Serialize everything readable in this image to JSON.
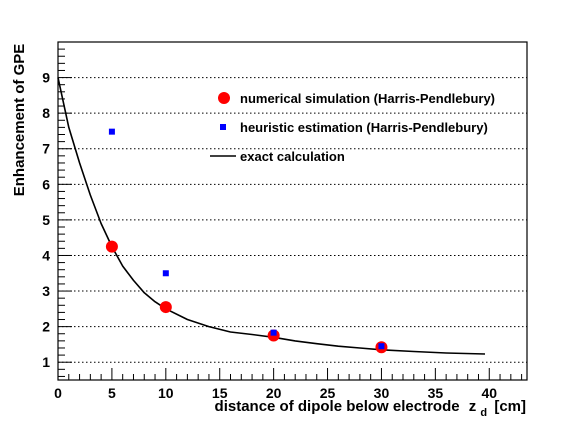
{
  "chart_data": {
    "type": "scatter",
    "xlabel": "distance of dipole below electrode",
    "xlabel_symbol": "z",
    "xlabel_subscript": "d",
    "xlabel_unit": "[cm]",
    "ylabel": "Enhancement of GPE",
    "xlim": [
      0,
      43.5
    ],
    "ylim": [
      0.5,
      10
    ],
    "x_ticks": [
      "0",
      "5",
      "10",
      "15",
      "20",
      "25",
      "30",
      "35",
      "40"
    ],
    "y_ticks": [
      "1",
      "2",
      "3",
      "4",
      "5",
      "6",
      "7",
      "8",
      "9"
    ],
    "grid": "horizontal dotted",
    "legend_position": "top-right",
    "series": [
      {
        "name": "numerical simulation (Harris-Pendlebury)",
        "kind": "marker-circle",
        "color": "#ff0000",
        "x": [
          5,
          10,
          20,
          30
        ],
        "y": [
          4.25,
          2.55,
          1.75,
          1.42
        ]
      },
      {
        "name": "heuristic estimation (Harris-Pendlebury)",
        "kind": "marker-square",
        "color": "#0000ff",
        "x": [
          5,
          10,
          20,
          30
        ],
        "y": [
          7.48,
          3.5,
          1.83,
          1.45
        ]
      },
      {
        "name": "exact calculation",
        "kind": "line",
        "color": "#000000",
        "x": [
          0,
          1,
          2,
          3,
          4,
          5,
          6,
          7,
          8,
          9,
          10,
          12,
          14,
          16,
          18,
          20,
          22,
          24,
          26,
          28,
          30,
          33,
          36,
          39.6
        ],
        "y": [
          9.0,
          7.6,
          6.6,
          5.7,
          4.9,
          4.25,
          3.7,
          3.3,
          2.95,
          2.7,
          2.5,
          2.2,
          2.0,
          1.85,
          1.78,
          1.7,
          1.6,
          1.52,
          1.45,
          1.4,
          1.35,
          1.3,
          1.26,
          1.23
        ]
      }
    ]
  }
}
